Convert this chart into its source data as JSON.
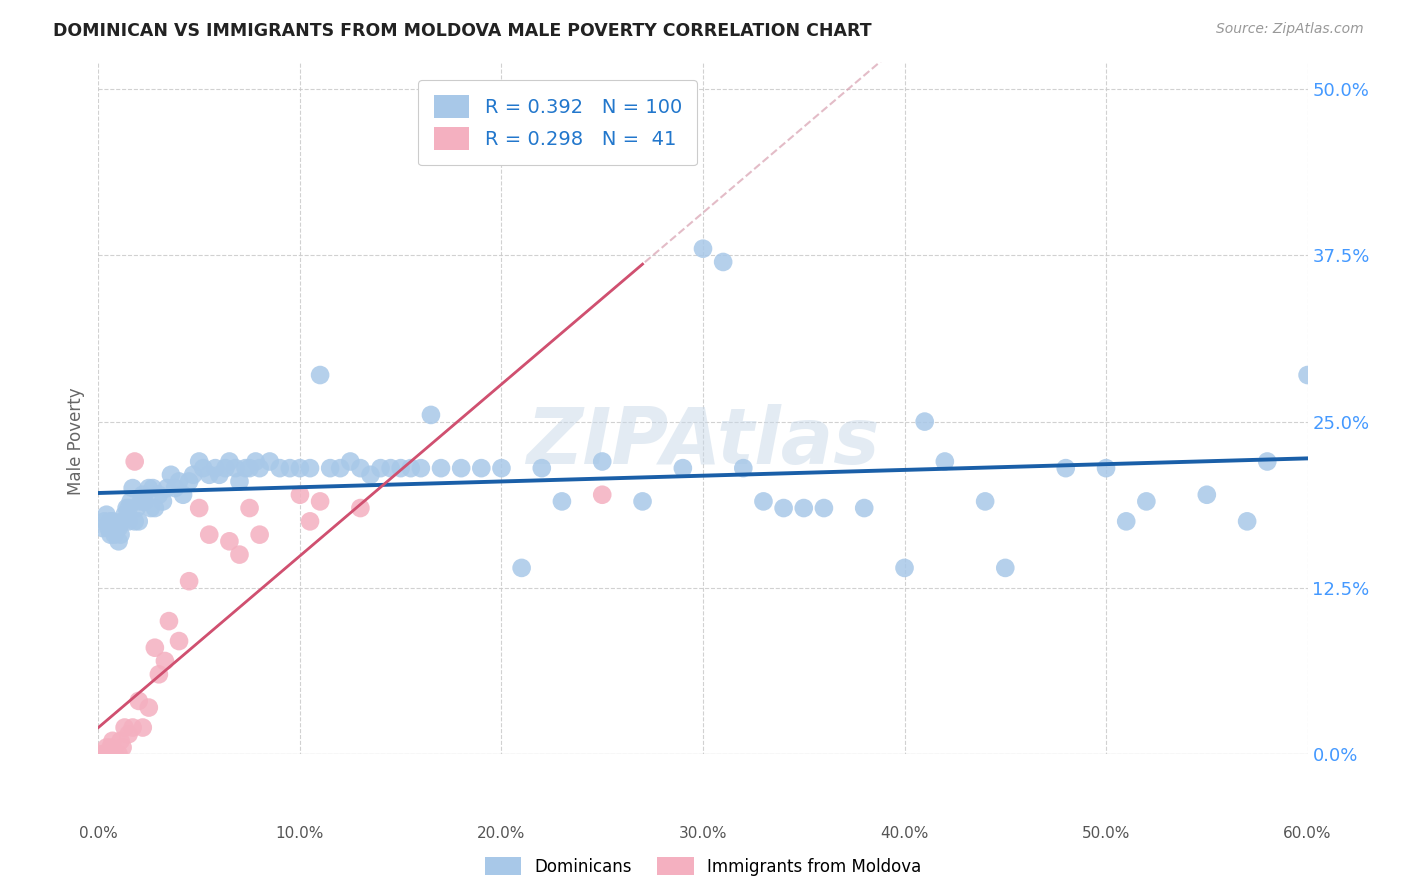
{
  "title": "DOMINICAN VS IMMIGRANTS FROM MOLDOVA MALE POVERTY CORRELATION CHART",
  "source": "Source: ZipAtlas.com",
  "xlabel_ticks": [
    "0.0%",
    "10.0%",
    "20.0%",
    "30.0%",
    "40.0%",
    "50.0%",
    "60.0%"
  ],
  "xlabel_vals": [
    0.0,
    0.1,
    0.2,
    0.3,
    0.4,
    0.5,
    0.6
  ],
  "ylabel": "Male Poverty",
  "ylabel_ticks": [
    "0.0%",
    "12.5%",
    "25.0%",
    "37.5%",
    "50.0%"
  ],
  "ylabel_vals": [
    0.0,
    0.125,
    0.25,
    0.375,
    0.5
  ],
  "xlim": [
    0.0,
    0.6
  ],
  "ylim": [
    -0.05,
    0.52
  ],
  "ylim_display": [
    0.0,
    0.5
  ],
  "dominicans_R": 0.392,
  "dominicans_N": 100,
  "moldova_R": 0.298,
  "moldova_N": 41,
  "dominican_color": "#a8c8e8",
  "moldova_color": "#f4b0c0",
  "dominican_line_color": "#1a5fa8",
  "moldova_line_color": "#d05070",
  "moldova_dash_color": "#d8a0b0",
  "watermark": "ZIPAtlas",
  "dom_x": [
    0.002,
    0.003,
    0.004,
    0.005,
    0.006,
    0.006,
    0.007,
    0.007,
    0.008,
    0.009,
    0.01,
    0.01,
    0.011,
    0.012,
    0.013,
    0.014,
    0.015,
    0.015,
    0.016,
    0.017,
    0.018,
    0.019,
    0.02,
    0.021,
    0.022,
    0.023,
    0.025,
    0.026,
    0.027,
    0.028,
    0.03,
    0.032,
    0.034,
    0.036,
    0.038,
    0.04,
    0.042,
    0.045,
    0.047,
    0.05,
    0.052,
    0.055,
    0.058,
    0.06,
    0.063,
    0.065,
    0.068,
    0.07,
    0.073,
    0.075,
    0.078,
    0.08,
    0.085,
    0.09,
    0.095,
    0.1,
    0.105,
    0.11,
    0.115,
    0.12,
    0.125,
    0.13,
    0.135,
    0.14,
    0.145,
    0.15,
    0.155,
    0.16,
    0.165,
    0.17,
    0.18,
    0.19,
    0.2,
    0.21,
    0.22,
    0.23,
    0.25,
    0.27,
    0.29,
    0.3,
    0.31,
    0.32,
    0.33,
    0.34,
    0.35,
    0.36,
    0.38,
    0.4,
    0.41,
    0.42,
    0.44,
    0.45,
    0.48,
    0.5,
    0.51,
    0.52,
    0.55,
    0.57,
    0.58,
    0.6
  ],
  "dom_y": [
    0.17,
    0.175,
    0.18,
    0.17,
    0.175,
    0.165,
    0.17,
    0.175,
    0.165,
    0.17,
    0.16,
    0.17,
    0.165,
    0.175,
    0.18,
    0.185,
    0.175,
    0.185,
    0.19,
    0.2,
    0.175,
    0.185,
    0.175,
    0.19,
    0.195,
    0.19,
    0.2,
    0.185,
    0.2,
    0.185,
    0.195,
    0.19,
    0.2,
    0.21,
    0.2,
    0.205,
    0.195,
    0.205,
    0.21,
    0.22,
    0.215,
    0.21,
    0.215,
    0.21,
    0.215,
    0.22,
    0.215,
    0.205,
    0.215,
    0.215,
    0.22,
    0.215,
    0.22,
    0.215,
    0.215,
    0.215,
    0.215,
    0.285,
    0.215,
    0.215,
    0.22,
    0.215,
    0.21,
    0.215,
    0.215,
    0.215,
    0.215,
    0.215,
    0.255,
    0.215,
    0.215,
    0.215,
    0.215,
    0.14,
    0.215,
    0.19,
    0.22,
    0.19,
    0.215,
    0.38,
    0.37,
    0.215,
    0.19,
    0.185,
    0.185,
    0.185,
    0.185,
    0.14,
    0.25,
    0.22,
    0.19,
    0.14,
    0.215,
    0.215,
    0.175,
    0.19,
    0.195,
    0.175,
    0.22,
    0.285
  ],
  "mol_x": [
    0.0,
    0.0,
    0.001,
    0.001,
    0.002,
    0.003,
    0.003,
    0.004,
    0.005,
    0.005,
    0.006,
    0.007,
    0.008,
    0.009,
    0.01,
    0.011,
    0.012,
    0.013,
    0.015,
    0.017,
    0.018,
    0.02,
    0.022,
    0.025,
    0.028,
    0.03,
    0.033,
    0.035,
    0.04,
    0.045,
    0.05,
    0.055,
    0.065,
    0.07,
    0.075,
    0.08,
    0.1,
    0.105,
    0.11,
    0.13,
    0.25
  ],
  "mol_y": [
    -0.03,
    -0.01,
    0.0,
    -0.015,
    -0.02,
    0.0,
    -0.01,
    0.005,
    -0.005,
    0.0,
    0.005,
    0.01,
    0.0,
    -0.01,
    0.0,
    0.01,
    0.005,
    0.02,
    0.015,
    0.02,
    0.22,
    0.04,
    0.02,
    0.035,
    0.08,
    0.06,
    0.07,
    0.1,
    0.085,
    0.13,
    0.185,
    0.165,
    0.16,
    0.15,
    0.185,
    0.165,
    0.195,
    0.175,
    0.19,
    0.185,
    0.195
  ]
}
